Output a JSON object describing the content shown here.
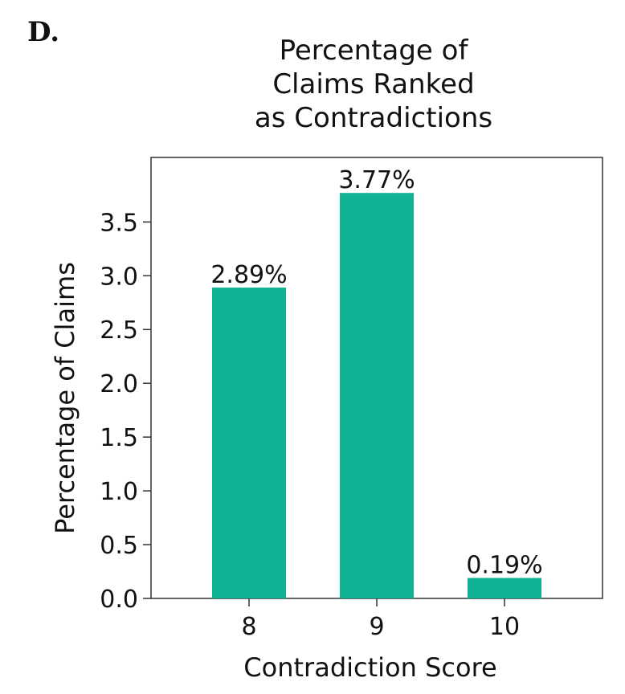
{
  "panel_label": "D.",
  "chart_data": {
    "type": "bar",
    "title_lines": [
      "Percentage of",
      "Claims Ranked",
      "as Contradictions"
    ],
    "xlabel": "Contradiction Score",
    "ylabel": "Percentage of Claims",
    "categories": [
      "8",
      "9",
      "10"
    ],
    "values": [
      2.89,
      3.77,
      0.19
    ],
    "value_labels": [
      "2.89%",
      "3.77%",
      "0.19%"
    ],
    "yticks": [
      0.0,
      0.5,
      1.0,
      1.5,
      2.0,
      2.5,
      3.0,
      3.5
    ],
    "ytick_labels": [
      "0.0",
      "0.5",
      "1.0",
      "1.5",
      "2.0",
      "2.5",
      "3.0",
      "3.5"
    ],
    "ylim": [
      0,
      4.1
    ],
    "bar_color": "#10b294",
    "grid": false,
    "legend": "none"
  }
}
